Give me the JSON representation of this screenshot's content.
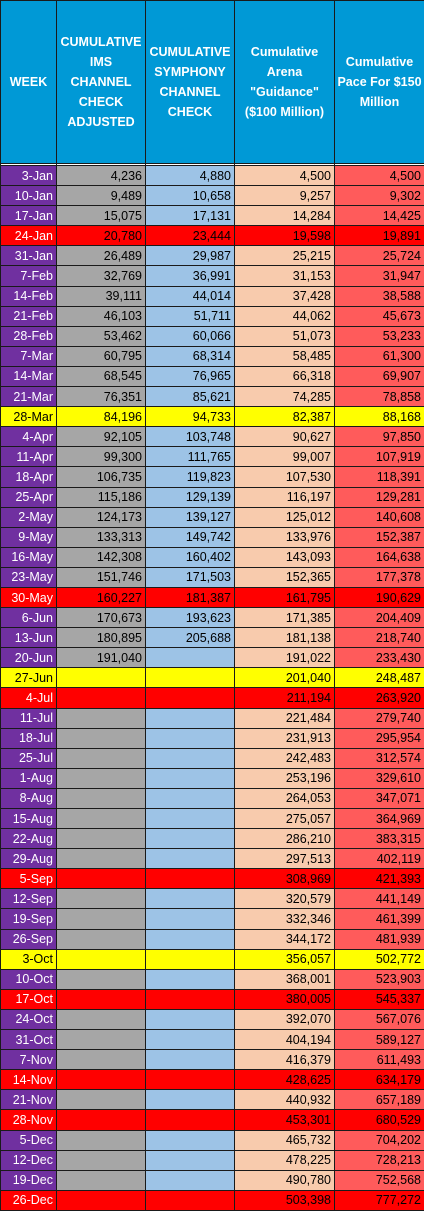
{
  "headers": [
    "WEEK",
    "CUMULATIVE IMS CHANNEL CHECK ADJUSTED",
    "CUMULATIVE SYMPHONY CHANNEL CHECK",
    "Cumulative Arena \"Guidance\" ($100 Million)",
    "Cumulative Pace For $150 Million"
  ],
  "colors": {
    "header_bg": "#0099d6",
    "week_bg": "#7030a0",
    "ims_bg": "#a6a6a6",
    "symphony_bg": "#9dc3e6",
    "guidance_bg": "#f8cbad",
    "pace_bg": "#ff5b5b",
    "highlight_red": "#ff0000",
    "highlight_yellow": "#ffff00"
  },
  "rows": [
    {
      "week": "3-Jan",
      "ims": "4,236",
      "sym": "4,880",
      "guid": "4,500",
      "pace": "4,500",
      "hl": ""
    },
    {
      "week": "10-Jan",
      "ims": "9,489",
      "sym": "10,658",
      "guid": "9,257",
      "pace": "9,302",
      "hl": ""
    },
    {
      "week": "17-Jan",
      "ims": "15,075",
      "sym": "17,131",
      "guid": "14,284",
      "pace": "14,425",
      "hl": ""
    },
    {
      "week": "24-Jan",
      "ims": "20,780",
      "sym": "23,444",
      "guid": "19,598",
      "pace": "19,891",
      "hl": "red"
    },
    {
      "week": "31-Jan",
      "ims": "26,489",
      "sym": "29,987",
      "guid": "25,215",
      "pace": "25,724",
      "hl": ""
    },
    {
      "week": "7-Feb",
      "ims": "32,769",
      "sym": "36,991",
      "guid": "31,153",
      "pace": "31,947",
      "hl": ""
    },
    {
      "week": "14-Feb",
      "ims": "39,111",
      "sym": "44,014",
      "guid": "37,428",
      "pace": "38,588",
      "hl": ""
    },
    {
      "week": "21-Feb",
      "ims": "46,103",
      "sym": "51,711",
      "guid": "44,062",
      "pace": "45,673",
      "hl": ""
    },
    {
      "week": "28-Feb",
      "ims": "53,462",
      "sym": "60,066",
      "guid": "51,073",
      "pace": "53,233",
      "hl": ""
    },
    {
      "week": "7-Mar",
      "ims": "60,795",
      "sym": "68,314",
      "guid": "58,485",
      "pace": "61,300",
      "hl": ""
    },
    {
      "week": "14-Mar",
      "ims": "68,545",
      "sym": "76,965",
      "guid": "66,318",
      "pace": "69,907",
      "hl": ""
    },
    {
      "week": "21-Mar",
      "ims": "76,351",
      "sym": "85,621",
      "guid": "74,285",
      "pace": "78,858",
      "hl": ""
    },
    {
      "week": "28-Mar",
      "ims": "84,196",
      "sym": "94,733",
      "guid": "82,387",
      "pace": "88,168",
      "hl": "yellow"
    },
    {
      "week": "4-Apr",
      "ims": "92,105",
      "sym": "103,748",
      "guid": "90,627",
      "pace": "97,850",
      "hl": ""
    },
    {
      "week": "11-Apr",
      "ims": "99,300",
      "sym": "111,765",
      "guid": "99,007",
      "pace": "107,919",
      "hl": ""
    },
    {
      "week": "18-Apr",
      "ims": "106,735",
      "sym": "119,823",
      "guid": "107,530",
      "pace": "118,391",
      "hl": ""
    },
    {
      "week": "25-Apr",
      "ims": "115,186",
      "sym": "129,139",
      "guid": "116,197",
      "pace": "129,281",
      "hl": ""
    },
    {
      "week": "2-May",
      "ims": "124,173",
      "sym": "139,127",
      "guid": "125,012",
      "pace": "140,608",
      "hl": ""
    },
    {
      "week": "9-May",
      "ims": "133,313",
      "sym": "149,742",
      "guid": "133,976",
      "pace": "152,387",
      "hl": ""
    },
    {
      "week": "16-May",
      "ims": "142,308",
      "sym": "160,402",
      "guid": "143,093",
      "pace": "164,638",
      "hl": ""
    },
    {
      "week": "23-May",
      "ims": "151,746",
      "sym": "171,503",
      "guid": "152,365",
      "pace": "177,378",
      "hl": ""
    },
    {
      "week": "30-May",
      "ims": "160,227",
      "sym": "181,387",
      "guid": "161,795",
      "pace": "190,629",
      "hl": "red"
    },
    {
      "week": "6-Jun",
      "ims": "170,673",
      "sym": "193,623",
      "guid": "171,385",
      "pace": "204,409",
      "hl": ""
    },
    {
      "week": "13-Jun",
      "ims": "180,895",
      "sym": "205,688",
      "guid": "181,138",
      "pace": "218,740",
      "hl": ""
    },
    {
      "week": "20-Jun",
      "ims": "191,040",
      "sym": "",
      "guid": "191,022",
      "pace": "233,430",
      "hl": ""
    },
    {
      "week": "27-Jun",
      "ims": "",
      "sym": "",
      "guid": "201,040",
      "pace": "248,487",
      "hl": "yellow"
    },
    {
      "week": "4-Jul",
      "ims": "",
      "sym": "",
      "guid": "211,194",
      "pace": "263,920",
      "hl": "red"
    },
    {
      "week": "11-Jul",
      "ims": "",
      "sym": "",
      "guid": "221,484",
      "pace": "279,740",
      "hl": ""
    },
    {
      "week": "18-Jul",
      "ims": "",
      "sym": "",
      "guid": "231,913",
      "pace": "295,954",
      "hl": ""
    },
    {
      "week": "25-Jul",
      "ims": "",
      "sym": "",
      "guid": "242,483",
      "pace": "312,574",
      "hl": ""
    },
    {
      "week": "1-Aug",
      "ims": "",
      "sym": "",
      "guid": "253,196",
      "pace": "329,610",
      "hl": ""
    },
    {
      "week": "8-Aug",
      "ims": "",
      "sym": "",
      "guid": "264,053",
      "pace": "347,071",
      "hl": ""
    },
    {
      "week": "15-Aug",
      "ims": "",
      "sym": "",
      "guid": "275,057",
      "pace": "364,969",
      "hl": ""
    },
    {
      "week": "22-Aug",
      "ims": "",
      "sym": "",
      "guid": "286,210",
      "pace": "383,315",
      "hl": ""
    },
    {
      "week": "29-Aug",
      "ims": "",
      "sym": "",
      "guid": "297,513",
      "pace": "402,119",
      "hl": ""
    },
    {
      "week": "5-Sep",
      "ims": "",
      "sym": "",
      "guid": "308,969",
      "pace": "421,393",
      "hl": "red"
    },
    {
      "week": "12-Sep",
      "ims": "",
      "sym": "",
      "guid": "320,579",
      "pace": "441,149",
      "hl": ""
    },
    {
      "week": "19-Sep",
      "ims": "",
      "sym": "",
      "guid": "332,346",
      "pace": "461,399",
      "hl": ""
    },
    {
      "week": "26-Sep",
      "ims": "",
      "sym": "",
      "guid": "344,172",
      "pace": "481,939",
      "hl": ""
    },
    {
      "week": "3-Oct",
      "ims": "",
      "sym": "",
      "guid": "356,057",
      "pace": "502,772",
      "hl": "yellow"
    },
    {
      "week": "10-Oct",
      "ims": "",
      "sym": "",
      "guid": "368,001",
      "pace": "523,903",
      "hl": ""
    },
    {
      "week": "17-Oct",
      "ims": "",
      "sym": "",
      "guid": "380,005",
      "pace": "545,337",
      "hl": "red"
    },
    {
      "week": "24-Oct",
      "ims": "",
      "sym": "",
      "guid": "392,070",
      "pace": "567,076",
      "hl": ""
    },
    {
      "week": "31-Oct",
      "ims": "",
      "sym": "",
      "guid": "404,194",
      "pace": "589,127",
      "hl": ""
    },
    {
      "week": "7-Nov",
      "ims": "",
      "sym": "",
      "guid": "416,379",
      "pace": "611,493",
      "hl": ""
    },
    {
      "week": "14-Nov",
      "ims": "",
      "sym": "",
      "guid": "428,625",
      "pace": "634,179",
      "hl": "red"
    },
    {
      "week": "21-Nov",
      "ims": "",
      "sym": "",
      "guid": "440,932",
      "pace": "657,189",
      "hl": ""
    },
    {
      "week": "28-Nov",
      "ims": "",
      "sym": "",
      "guid": "453,301",
      "pace": "680,529",
      "hl": "red"
    },
    {
      "week": "5-Dec",
      "ims": "",
      "sym": "",
      "guid": "465,732",
      "pace": "704,202",
      "hl": ""
    },
    {
      "week": "12-Dec",
      "ims": "",
      "sym": "",
      "guid": "478,225",
      "pace": "728,213",
      "hl": ""
    },
    {
      "week": "19-Dec",
      "ims": "",
      "sym": "",
      "guid": "490,780",
      "pace": "752,568",
      "hl": ""
    },
    {
      "week": "26-Dec",
      "ims": "",
      "sym": "",
      "guid": "503,398",
      "pace": "777,272",
      "hl": "red"
    }
  ]
}
